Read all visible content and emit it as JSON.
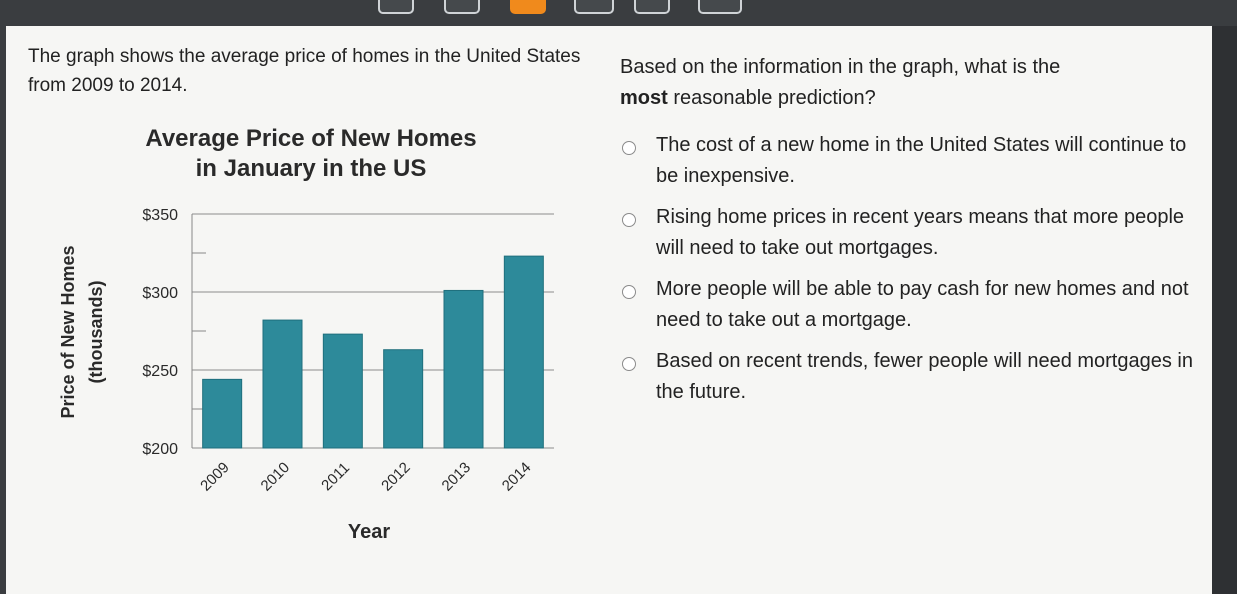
{
  "prompt": "The graph shows the average price of homes in the United States from 2009 to 2014.",
  "question": {
    "lead": "Based on the information in the graph, what is the",
    "emphasis": "most",
    "rest": "reasonable prediction?"
  },
  "options": [
    "The cost of a new home in the United States will continue to be inexpensive.",
    "Rising home prices in recent years means that more people will need to take out mortgages.",
    "More people will be able to pay cash for new homes and not need to take out a mortgage.",
    "Based on recent trends, fewer people will need mortgages in the future."
  ],
  "colors": {
    "bar": "#2d8a9a",
    "bar_edge": "#1f6f7d",
    "accent_tab": "#f08a1c"
  },
  "chart_data": {
    "type": "bar",
    "title": "Average Price of New Homes in January in the US",
    "title_lines": [
      "Average Price of New Homes",
      "in January in the US"
    ],
    "categories": [
      "2009",
      "2010",
      "2011",
      "2012",
      "2013",
      "2014"
    ],
    "values": [
      244,
      282,
      273,
      263,
      301,
      323
    ],
    "xlabel": "Year",
    "ylabel_lines": [
      "Price of New Homes",
      "(thousands)"
    ],
    "ylim": [
      200,
      350
    ],
    "yticks": [
      200,
      250,
      300,
      350
    ],
    "ytick_labels": [
      "$200",
      "$250",
      "$300",
      "$350"
    ],
    "grid": true
  }
}
